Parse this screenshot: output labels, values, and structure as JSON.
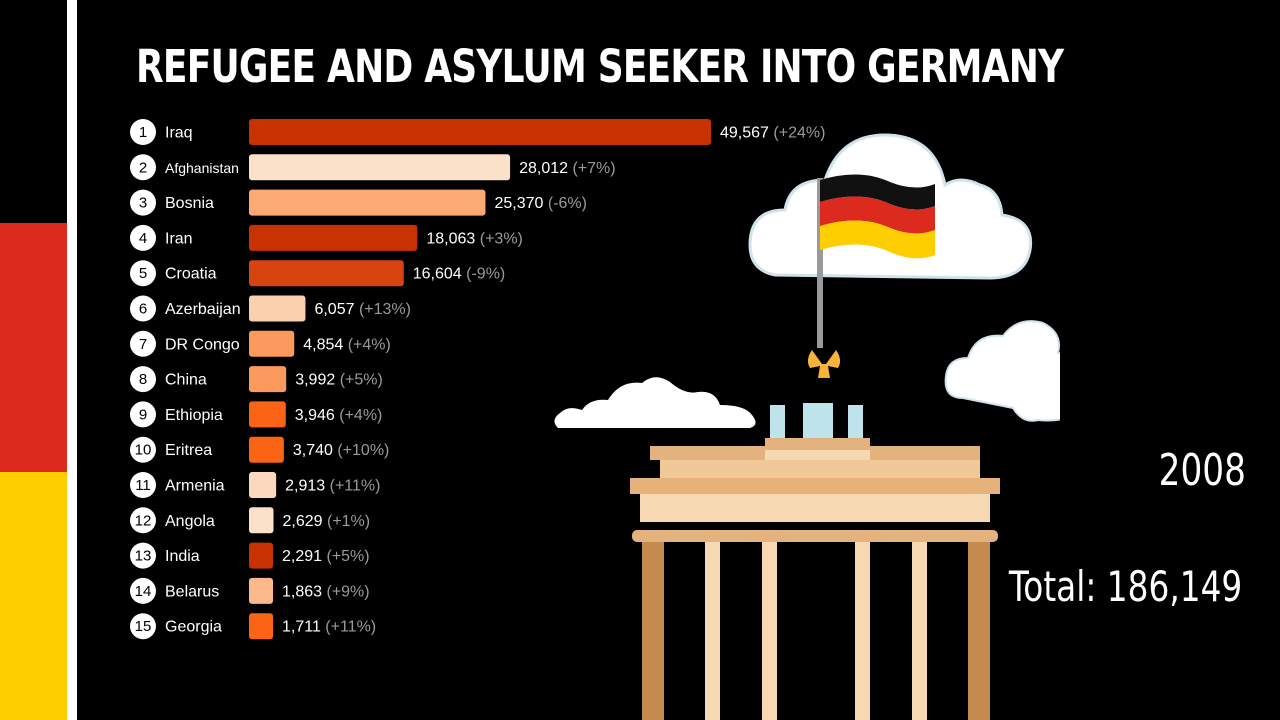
{
  "title": "REFUGEE AND ASYLUM SEEKER INTO GERMANY",
  "year": "2008",
  "total_label": "Total: 186,149",
  "colors": {
    "background": "#000000",
    "flag_black": "#000000",
    "flag_red": "#DD2A1E",
    "flag_gold": "#FFCE00",
    "text_muted": "#9a9a9a"
  },
  "icons": [
    "german-flag-icon",
    "brandenburg-gate-icon",
    "cloud-icon"
  ],
  "chart_data": {
    "type": "bar",
    "orientation": "horizontal",
    "categories": [
      "Iraq",
      "Afghanistan",
      "Bosnia",
      "Iran",
      "Croatia",
      "Azerbaijan",
      "DR Congo",
      "China",
      "Ethiopia",
      "Eritrea",
      "Armenia",
      "Angola",
      "India",
      "Belarus",
      "Georgia"
    ],
    "ranks": [
      "1",
      "2",
      "3",
      "4",
      "5",
      "6",
      "7",
      "8",
      "9",
      "10",
      "11",
      "12",
      "13",
      "14",
      "15"
    ],
    "values": [
      49567,
      28012,
      25370,
      18063,
      16604,
      6057,
      4854,
      3992,
      3946,
      3740,
      2913,
      2629,
      2291,
      1863,
      1711
    ],
    "value_labels": [
      "49,567",
      "28,012",
      "25,370",
      "18,063",
      "16,604",
      "6,057",
      "4,854",
      "3,992",
      "3,946",
      "3,740",
      "2,913",
      "2,629",
      "2,291",
      "1,863",
      "1,711"
    ],
    "change_labels": [
      "(+24%)",
      "(+7%)",
      "(-6%)",
      "(+3%)",
      "(-9%)",
      "(+13%)",
      "(+4%)",
      "(+5%)",
      "(+4%)",
      "(+10%)",
      "(+11%)",
      "(+1%)",
      "(+5%)",
      "(+9%)",
      "(+11%)"
    ],
    "bar_colors": [
      "#C83200",
      "#FBE0CA",
      "#FBAA74",
      "#C83200",
      "#D84410",
      "#FBD0AE",
      "#FB9A5C",
      "#FB9A5C",
      "#FB6414",
      "#FB6414",
      "#FBD8BE",
      "#FBE0CA",
      "#C83200",
      "#FBB88A",
      "#FB6414"
    ],
    "xlim": [
      0,
      49567
    ]
  }
}
